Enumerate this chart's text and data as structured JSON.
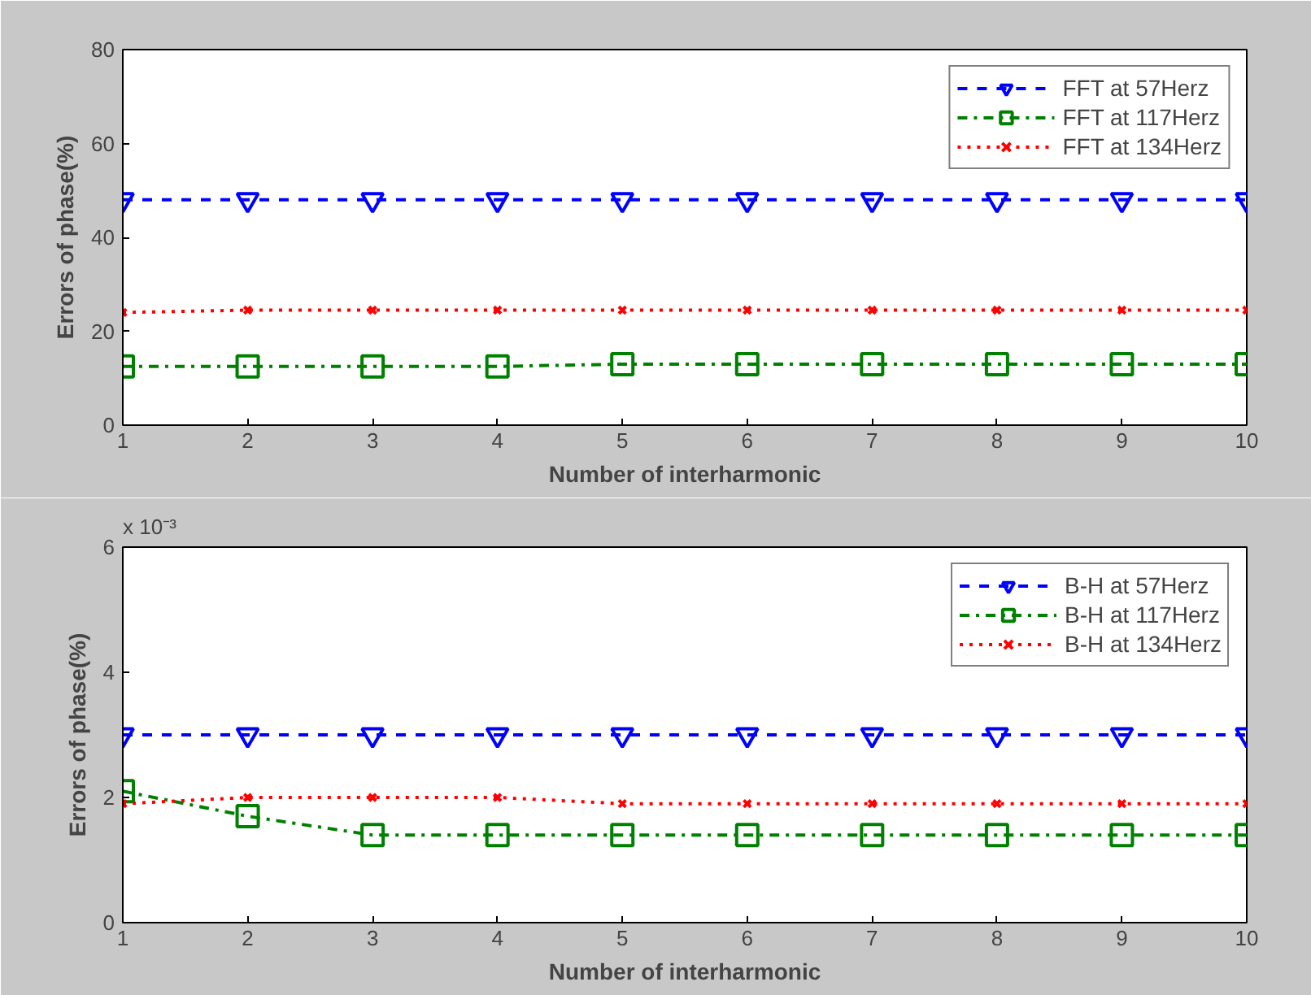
{
  "chart_data": [
    {
      "type": "line",
      "xlabel": "Number of interharmonic",
      "ylabel": "Errors of phase(%)",
      "x": [
        1,
        2,
        3,
        4,
        5,
        6,
        7,
        8,
        9,
        10
      ],
      "xlim": [
        1,
        10
      ],
      "xticks": [
        1,
        2,
        3,
        4,
        5,
        6,
        7,
        8,
        9,
        10
      ],
      "ylim": [
        0,
        80
      ],
      "yticks": [
        0,
        20,
        40,
        60,
        80
      ],
      "grid": false,
      "legend": "top right",
      "series": [
        {
          "name": "FFT at 57Herz",
          "color": "#0000ff",
          "marker": "triangle",
          "line_style": "dashed",
          "values": [
            48,
            48,
            48,
            48,
            48,
            48,
            48,
            48,
            48,
            48
          ]
        },
        {
          "name": "FFT at 117Herz",
          "color": "#008000",
          "marker": "square",
          "line_style": "dashdot",
          "values": [
            12.5,
            12.5,
            12.5,
            12.5,
            13,
            13,
            13,
            13,
            13,
            13
          ]
        },
        {
          "name": "FFT at 134Herz",
          "color": "#ff0000",
          "marker": "cross",
          "line_style": "dotted",
          "values": [
            24,
            24.5,
            24.5,
            24.5,
            24.5,
            24.5,
            24.5,
            24.5,
            24.5,
            24.5
          ]
        }
      ]
    },
    {
      "type": "line",
      "xlabel": "Number of interharmonic",
      "ylabel": "Errors of phase(%)",
      "annotations": [
        "x 10⁻³"
      ],
      "x": [
        1,
        2,
        3,
        4,
        5,
        6,
        7,
        8,
        9,
        10
      ],
      "xlim": [
        1,
        10
      ],
      "xticks": [
        1,
        2,
        3,
        4,
        5,
        6,
        7,
        8,
        9,
        10
      ],
      "ylim": [
        0,
        6
      ],
      "yticks": [
        0,
        2,
        4,
        6
      ],
      "grid": false,
      "legend": "top right",
      "series": [
        {
          "name": "B-H at 57Herz",
          "color": "#0000ff",
          "marker": "triangle",
          "line_style": "dashed",
          "values": [
            3,
            3,
            3,
            3,
            3,
            3,
            3,
            3,
            3,
            3
          ]
        },
        {
          "name": "B-H at 117Herz",
          "color": "#008000",
          "marker": "square",
          "line_style": "dashdot",
          "values": [
            2.1,
            1.7,
            1.4,
            1.4,
            1.4,
            1.4,
            1.4,
            1.4,
            1.4,
            1.4
          ]
        },
        {
          "name": "B-H at 134Herz",
          "color": "#ff0000",
          "marker": "cross",
          "line_style": "dotted",
          "values": [
            1.9,
            2,
            2,
            2,
            1.9,
            1.9,
            1.9,
            1.9,
            1.9,
            1.9
          ]
        }
      ]
    }
  ]
}
